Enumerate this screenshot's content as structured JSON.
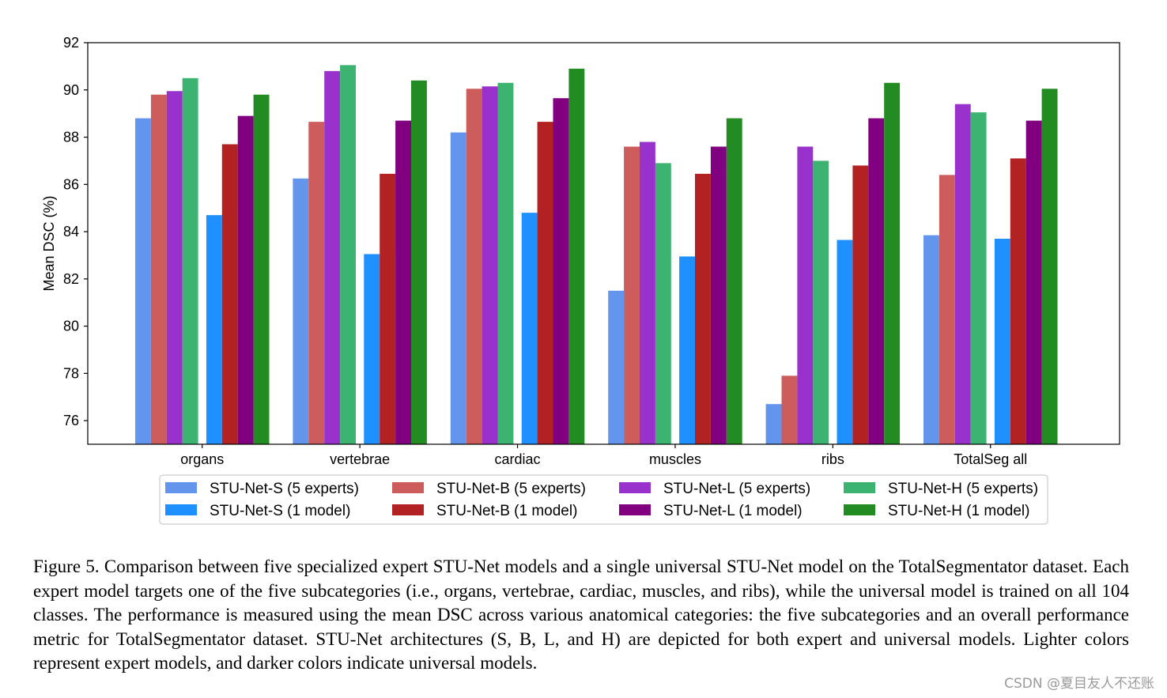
{
  "chart_data": {
    "type": "bar",
    "title": "",
    "xlabel": "",
    "ylabel": "Mean DSC (%)",
    "ylim": [
      75,
      92
    ],
    "yticks": [
      76,
      78,
      80,
      82,
      84,
      86,
      88,
      90,
      92
    ],
    "grid": false,
    "legend_position": "bottom-center",
    "categories": [
      "organs",
      "vertebrae",
      "cardiac",
      "muscles",
      "ribs",
      "TotalSeg all"
    ],
    "series": [
      {
        "name": "STU-Net-S (5 experts)",
        "color": "#6495ED",
        "values": [
          88.8,
          86.25,
          88.2,
          81.5,
          76.7,
          83.85
        ]
      },
      {
        "name": "STU-Net-B (5 experts)",
        "color": "#CD5C5C",
        "values": [
          89.8,
          88.65,
          90.05,
          87.6,
          77.9,
          86.4
        ]
      },
      {
        "name": "STU-Net-L (5 experts)",
        "color": "#9932CC",
        "values": [
          89.95,
          90.8,
          90.15,
          87.8,
          87.6,
          89.4
        ]
      },
      {
        "name": "STU-Net-H (5 experts)",
        "color": "#3CB371",
        "values": [
          90.5,
          91.05,
          90.3,
          86.9,
          87.0,
          89.05
        ]
      },
      {
        "name": "STU-Net-S (1 model)",
        "color": "#1E90FF",
        "values": [
          84.7,
          83.05,
          84.8,
          82.95,
          83.65,
          83.7
        ]
      },
      {
        "name": "STU-Net-B (1 model)",
        "color": "#B22222",
        "values": [
          87.7,
          86.45,
          88.65,
          86.45,
          86.8,
          87.1
        ]
      },
      {
        "name": "STU-Net-L (1 model)",
        "color": "#800080",
        "values": [
          88.9,
          88.7,
          89.65,
          87.6,
          88.8,
          88.7
        ]
      },
      {
        "name": "STU-Net-H (1 model)",
        "color": "#228B22",
        "values": [
          89.8,
          90.4,
          90.9,
          88.8,
          90.3,
          90.05
        ]
      }
    ]
  },
  "caption": {
    "text": "Figure 5.  Comparison between five specialized expert STU-Net models and a single universal STU-Net model on the TotalSegmentator dataset.  Each expert model targets one of the five subcategories (i.e., organs, vertebrae, cardiac, muscles, and ribs), while the universal model is trained on all 104 classes.  The performance is measured using the mean DSC across various anatomical categories: the five subcategories and an overall performance metric for TotalSegmentator dataset.  STU-Net architectures (S, B, L, and H) are depicted for both expert and universal models. Lighter colors represent expert models, and darker colors indicate universal models."
  },
  "watermark": "CSDN @夏目友人不还账"
}
